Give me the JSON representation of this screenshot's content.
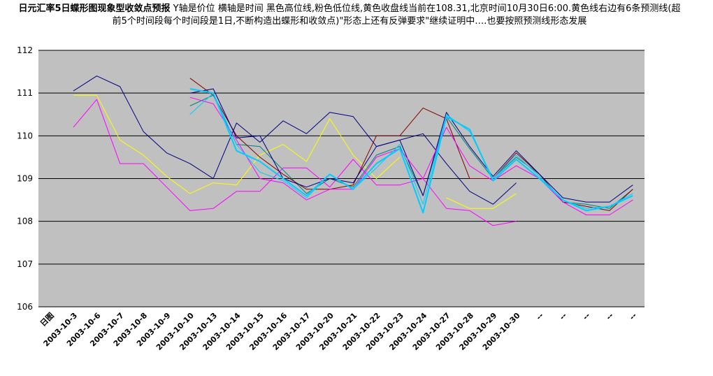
{
  "chart_data": {
    "type": "line",
    "title_bold": "日元汇率5日蝶形图现象型收敛点预报",
    "title_rest": " Y轴是价位 横轴是时间 黑色高位线,粉色低位线,黄色收盘线当前在108.31,北京时间10月30日6:00.黄色线右边有6条预测线(超前5个时间段每个时间段是1日,不断构造出蝶形和收敛点)\"形态上还有反弹要求\"继续证明中….也要按照预测线形态发展",
    "ylim": [
      106,
      112
    ],
    "yticks": [
      "106",
      "107",
      "108",
      "109",
      "110",
      "111",
      "112"
    ],
    "grid": true,
    "colors": {
      "plot_bg": "#c0c0c0",
      "navy": "#000080",
      "magenta": "#ff00ff",
      "yellow": "#ffff00",
      "teal": "#008080",
      "darkred": "#800000",
      "cyan": "#00ccff"
    },
    "categories": [
      "日图",
      "2003-10-3",
      "2003-10-6",
      "2003-10-7",
      "2003-10-8",
      "2003-10-9",
      "2003-10-10",
      "2003-10-13",
      "2003-10-14",
      "2003-10-15",
      "2003-10-16",
      "2003-10-17",
      "2003-10-20",
      "2003-10-21",
      "2003-10-22",
      "2003-10-23",
      "2003-10-24",
      "2003-10-27",
      "2003-10-28",
      "2003-10-29",
      "2003-10-30",
      "--",
      "--",
      "--",
      "--",
      "--"
    ],
    "series": [
      {
        "color": "#000080",
        "width": 1,
        "values": [
          null,
          111.05,
          111.4,
          111.15,
          110.1,
          109.6,
          109.35,
          109.0,
          110.3,
          109.85,
          110.35,
          110.05,
          110.55,
          110.45,
          109.75,
          109.9,
          110.05,
          109.35,
          108.7,
          108.4,
          108.9,
          null,
          null,
          null,
          null,
          null
        ]
      },
      {
        "color": "#ff00ff",
        "width": 1,
        "values": [
          null,
          110.2,
          110.85,
          109.35,
          109.35,
          108.8,
          108.25,
          108.3,
          108.7,
          108.7,
          109.25,
          109.25,
          108.8,
          109.45,
          108.85,
          108.85,
          109.0,
          108.3,
          108.25,
          107.9,
          108.0,
          null,
          null,
          null,
          null,
          null
        ]
      },
      {
        "color": "#ffff00",
        "width": 1,
        "values": [
          null,
          110.95,
          110.95,
          109.9,
          109.55,
          109.05,
          108.65,
          108.9,
          108.85,
          109.55,
          109.8,
          109.4,
          110.4,
          109.55,
          109.0,
          109.5,
          null,
          108.55,
          108.3,
          108.3,
          108.65,
          null,
          null,
          null,
          null,
          null
        ]
      },
      {
        "color": "#008080",
        "width": 1,
        "values": [
          null,
          null,
          null,
          null,
          null,
          null,
          110.7,
          110.95,
          109.8,
          109.75,
          109.2,
          108.65,
          109.0,
          108.8,
          109.55,
          109.75,
          108.6,
          110.45,
          109.7,
          109.0,
          109.5,
          109.1,
          108.45,
          108.4,
          108.3,
          108.75
        ]
      },
      {
        "color": "#800000",
        "width": 1,
        "values": [
          null,
          null,
          null,
          null,
          null,
          null,
          111.35,
          110.95,
          110.0,
          109.5,
          109.1,
          108.75,
          108.75,
          108.85,
          110.0,
          110.0,
          110.65,
          110.4,
          109.0,
          109.0,
          109.6,
          109.1,
          108.45,
          108.35,
          108.25,
          108.75
        ]
      },
      {
        "color": "#000080",
        "width": 1,
        "values": [
          null,
          null,
          null,
          null,
          null,
          null,
          111.0,
          111.1,
          109.95,
          110.0,
          109.0,
          108.8,
          109.0,
          108.9,
          109.75,
          109.9,
          108.6,
          110.55,
          109.75,
          109.05,
          109.65,
          109.1,
          108.55,
          108.45,
          108.45,
          108.85
        ]
      },
      {
        "color": "#ff00ff",
        "width": 1,
        "values": [
          null,
          null,
          null,
          null,
          null,
          null,
          110.9,
          110.75,
          109.9,
          109.0,
          108.9,
          108.5,
          108.75,
          108.75,
          109.5,
          109.7,
          109.0,
          110.2,
          109.3,
          108.95,
          109.3,
          109.0,
          108.45,
          108.15,
          108.15,
          108.5
        ]
      },
      {
        "color": "#00ccff",
        "width": 2,
        "values": [
          null,
          null,
          null,
          null,
          null,
          null,
          111.1,
          111.0,
          109.65,
          109.4,
          109.0,
          108.6,
          109.1,
          108.75,
          109.35,
          109.7,
          108.2,
          110.45,
          110.15,
          108.95,
          109.45,
          109.0,
          108.5,
          108.25,
          108.35,
          108.6
        ]
      },
      {
        "color": "#00ccff",
        "width": 1,
        "values": [
          null,
          null,
          null,
          null,
          null,
          null,
          110.5,
          111.0,
          109.8,
          109.15,
          108.95,
          108.55,
          109.1,
          108.75,
          109.25,
          109.8,
          108.4,
          110.5,
          110.1,
          109.0,
          109.55,
          109.05,
          108.5,
          108.3,
          108.35,
          108.65
        ]
      }
    ]
  }
}
